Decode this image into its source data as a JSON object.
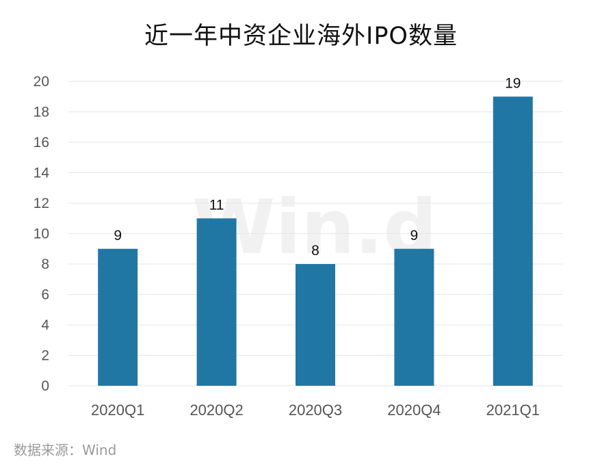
{
  "title": "近一年中资企业海外IPO数量",
  "source": "数据来源：Wind",
  "watermark": "Win.d",
  "colors": {
    "bar": "#2177a4",
    "grid": "#e6e6e6",
    "axis_text": "#555555",
    "label_text": "#111111"
  },
  "chart_data": {
    "type": "bar",
    "title": "近一年中资企业海外IPO数量",
    "categories": [
      "2020Q1",
      "2020Q2",
      "2020Q3",
      "2020Q4",
      "2021Q1"
    ],
    "values": [
      9,
      11,
      8,
      9,
      19
    ],
    "data_labels": [
      "9",
      "11",
      "8",
      "9",
      "19"
    ],
    "yticks": [
      "0",
      "2",
      "4",
      "6",
      "8",
      "10",
      "12",
      "14",
      "16",
      "18",
      "20"
    ],
    "ylim": [
      0,
      20
    ],
    "grid": true,
    "legend": "none",
    "xlabel": "",
    "ylabel": ""
  }
}
